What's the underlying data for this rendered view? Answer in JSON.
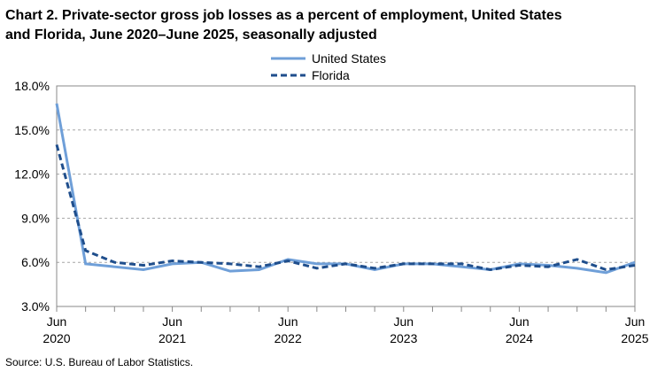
{
  "chart_data": {
    "type": "line",
    "title": [
      "Chart 2. Private-sector gross job losses as a percent of employment, United States",
      "and Florida, June 2020–June 2025, seasonally adjusted"
    ],
    "source": "Source: U.S. Bureau of Labor Statistics.",
    "categories": [
      "Jun 2020",
      null,
      null,
      null,
      "Jun 2021",
      null,
      null,
      null,
      "Jun 2022",
      null,
      null,
      null,
      "Jun 2023",
      null,
      null,
      null,
      "Jun 2024",
      null,
      null,
      null,
      "Jun 2025"
    ],
    "series": [
      {
        "name": "United States",
        "color": "#6f9fd8",
        "dash": "solid",
        "values": [
          16.8,
          5.9,
          5.7,
          5.5,
          5.9,
          6.0,
          5.4,
          5.5,
          6.2,
          5.9,
          5.9,
          5.5,
          5.9,
          5.9,
          5.7,
          5.5,
          5.9,
          5.8,
          5.6,
          5.3,
          6.0
        ]
      },
      {
        "name": "Florida",
        "color": "#1f4e8c",
        "dash": "dashed",
        "values": [
          14.0,
          6.8,
          6.0,
          5.8,
          6.1,
          6.0,
          5.9,
          5.7,
          6.1,
          5.6,
          5.9,
          5.6,
          5.9,
          5.9,
          5.9,
          5.5,
          5.8,
          5.7,
          6.2,
          5.5,
          5.8
        ]
      }
    ],
    "ylim": [
      3,
      18
    ],
    "yticks": [
      {
        "value": 3,
        "label": "3.0%"
      },
      {
        "value": 6,
        "label": "6.0%"
      },
      {
        "value": 9,
        "label": "9.0%"
      },
      {
        "value": 12,
        "label": "12.0%"
      },
      {
        "value": 15,
        "label": "15.0%"
      },
      {
        "value": 18,
        "label": "18.0%"
      }
    ],
    "grid": true,
    "legend": "top"
  }
}
